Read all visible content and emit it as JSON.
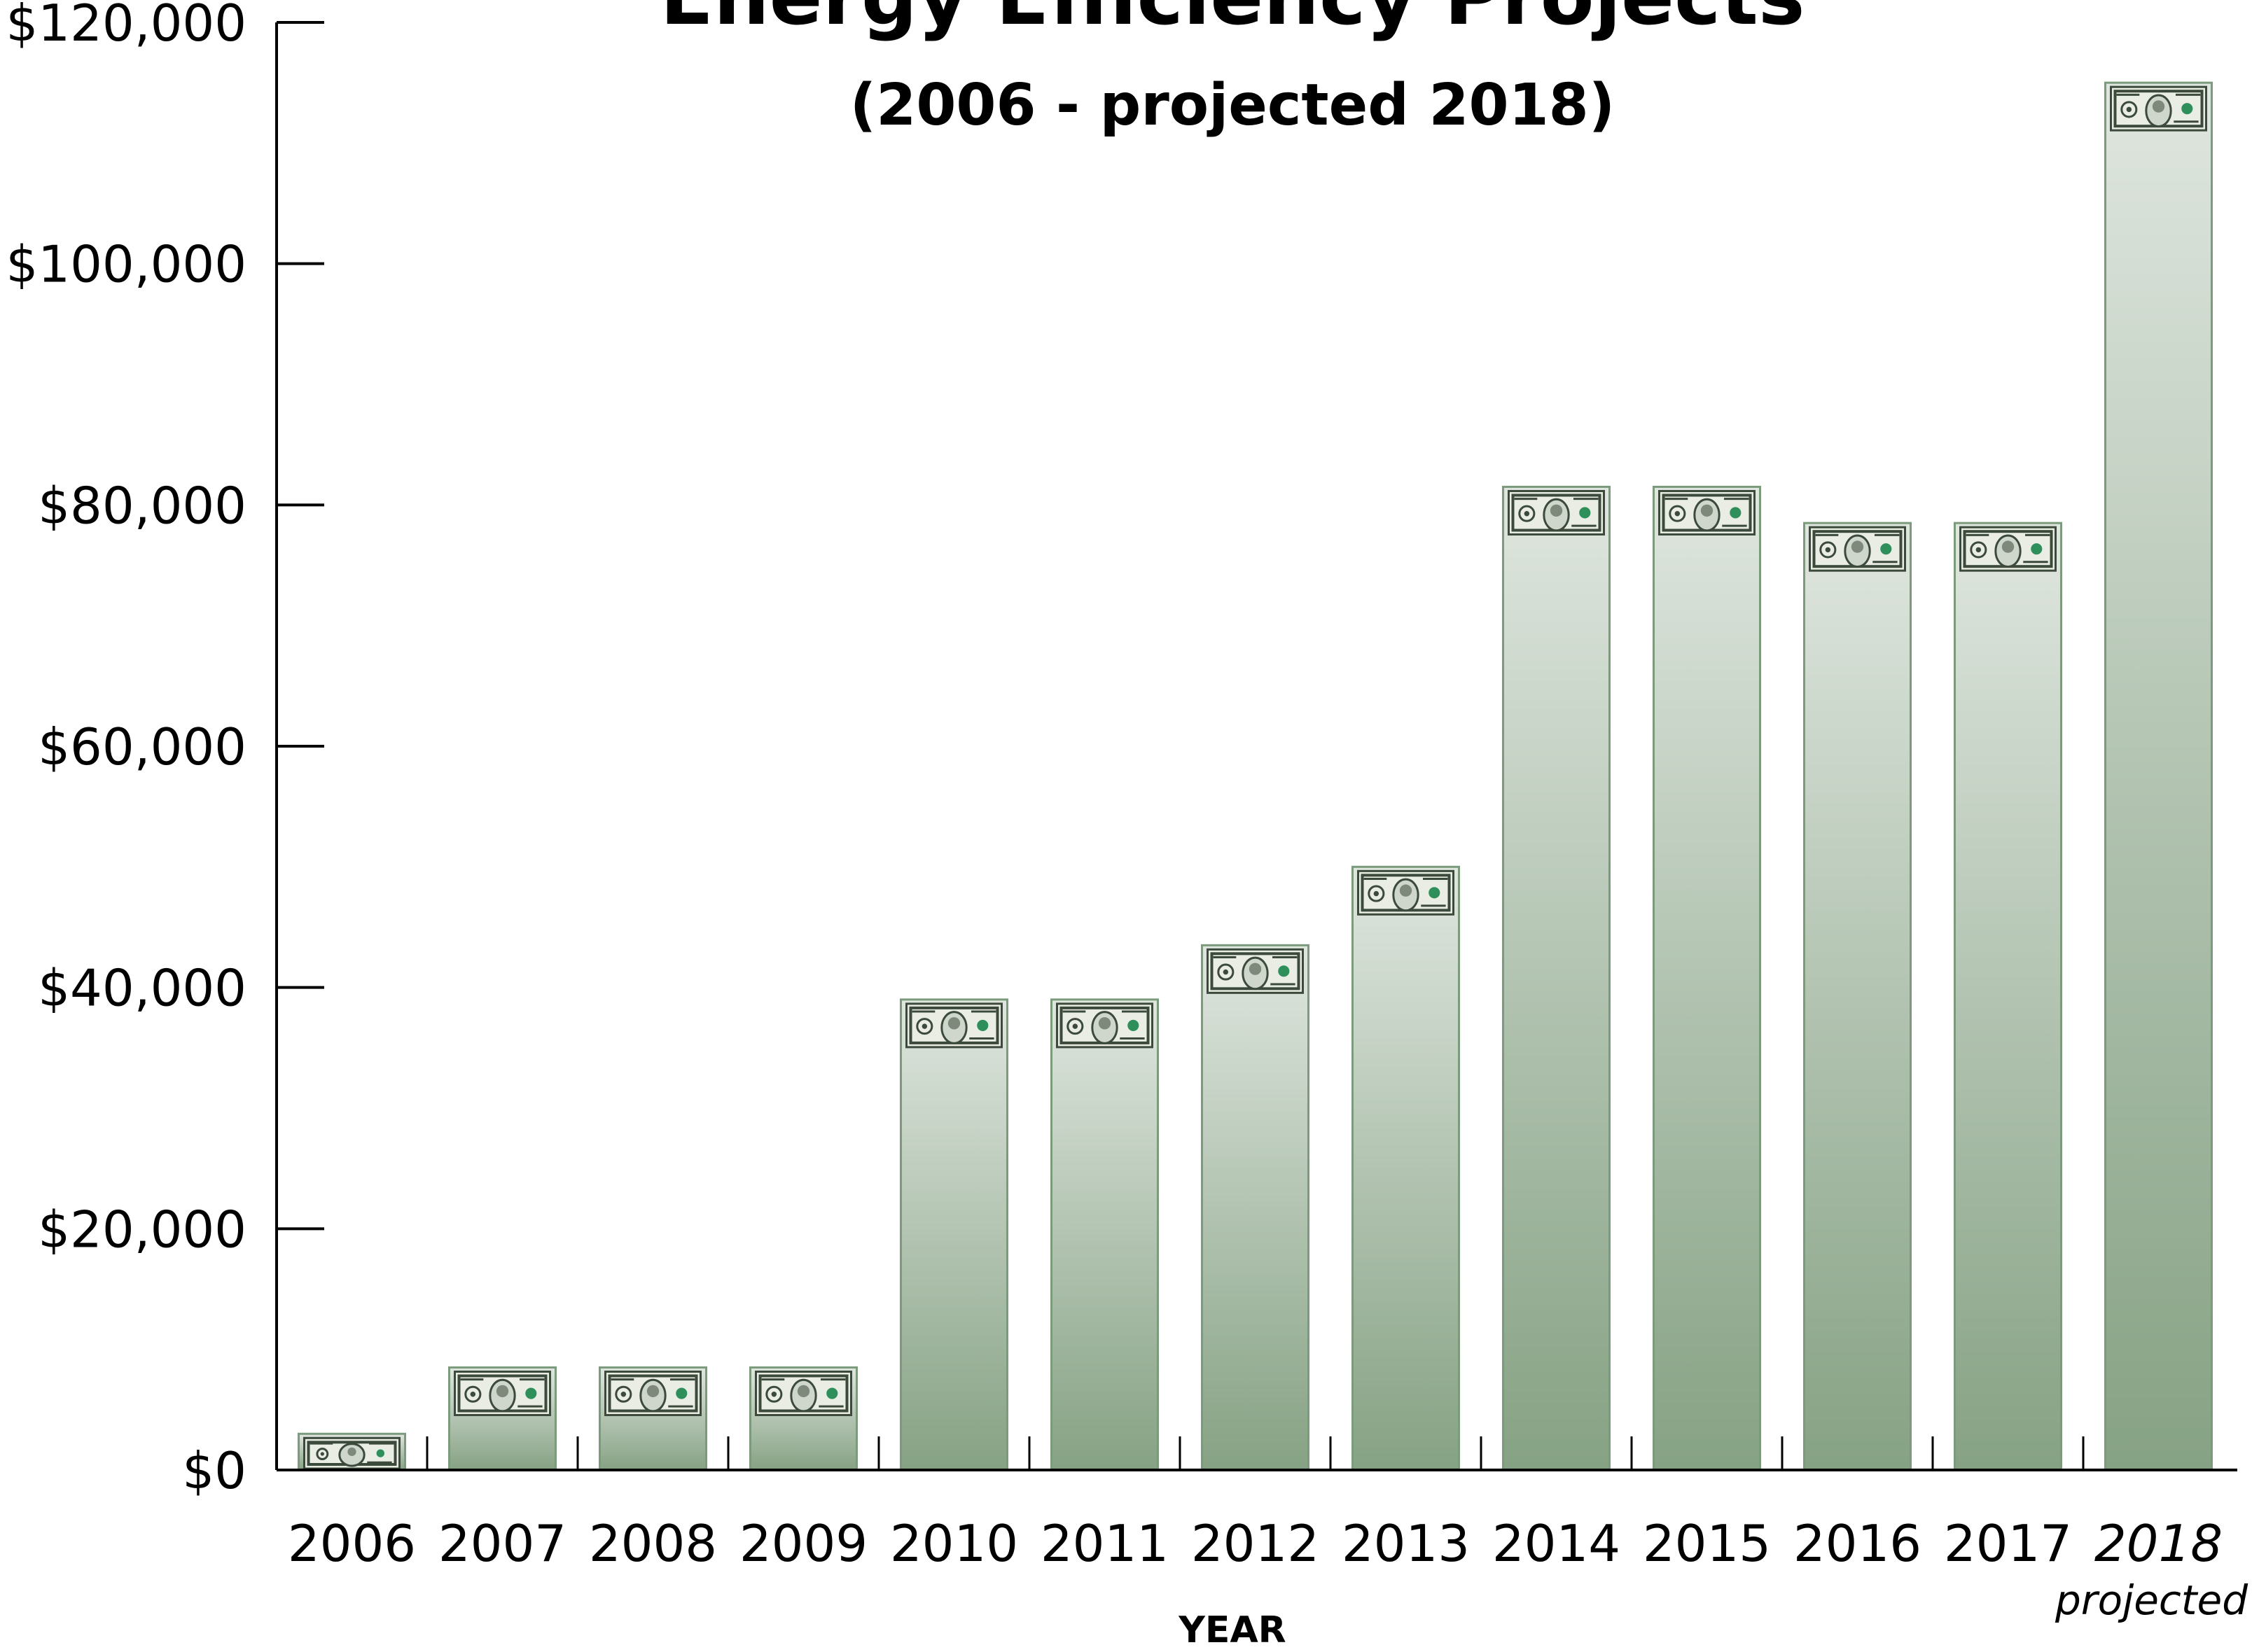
{
  "chart_data": {
    "type": "bar",
    "title": "Energy Efficiency Projects",
    "subtitle": "(2006 - projected 2018)",
    "xlabel": "YEAR",
    "ylabel": "",
    "categories": [
      "2006",
      "2007",
      "2008",
      "2009",
      "2010",
      "2011",
      "2012",
      "2013",
      "2014",
      "2015",
      "2016",
      "2017",
      "2018"
    ],
    "category_notes": [
      "",
      "",
      "",
      "",
      "",
      "",
      "",
      "",
      "",
      "",
      "",
      "",
      "projected"
    ],
    "italic_categories": [
      "2018"
    ],
    "values": [
      3000,
      8500,
      8500,
      8500,
      39000,
      39000,
      43500,
      50000,
      81500,
      81500,
      78500,
      78500,
      115000
    ],
    "ylim": [
      0,
      120000
    ],
    "yticks": [
      0,
      20000,
      40000,
      60000,
      80000,
      100000,
      120000
    ],
    "ytick_labels": [
      "$0",
      "$20,000",
      "$40,000",
      "$60,000",
      "$80,000",
      "$100,000",
      "$120,000"
    ],
    "grid": false,
    "legend": "none",
    "bar_decoration": "hundred-dollar-bill-icon"
  },
  "colors": {
    "bar_top": "#dfe6df",
    "bar_bottom": "#86a284",
    "bar_stroke": "#7c9b7d",
    "bill_paper": "#e9ede4",
    "bill_ink": "#3c4a3c",
    "bill_accent": "#2f8f5b",
    "axis": "#000000",
    "text": "#000000"
  }
}
